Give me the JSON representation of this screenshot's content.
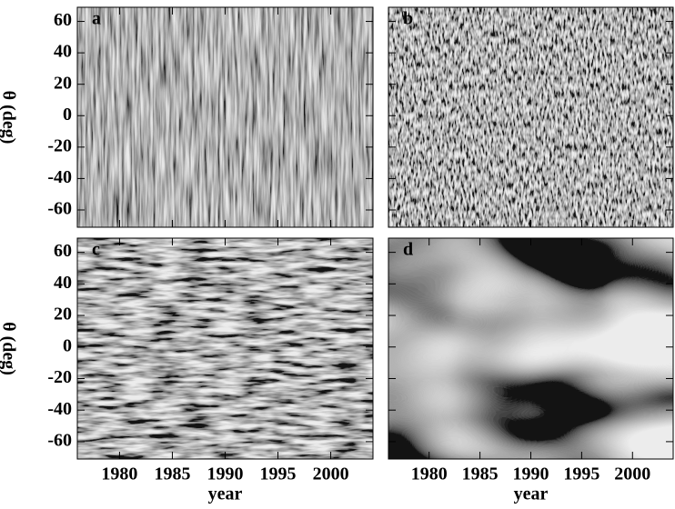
{
  "chart_data": [
    {
      "type": "image",
      "label": "a",
      "xlim": [
        1976,
        2004
      ],
      "ylim": [
        -71,
        69
      ],
      "xticks": [
        1980,
        1985,
        1990,
        1995,
        2000
      ],
      "yticks": [
        60,
        40,
        20,
        0,
        -20,
        -40,
        -60
      ],
      "ylabel": "θ (deg)"
    },
    {
      "type": "image",
      "label": "b",
      "xlim": [
        1976,
        2004
      ],
      "ylim": [
        -71,
        69
      ],
      "xticks": [
        1980,
        1985,
        1990,
        1995,
        2000
      ],
      "yticks": [
        60,
        40,
        20,
        0,
        -20,
        -40,
        -60
      ]
    },
    {
      "type": "image",
      "label": "c",
      "xlim": [
        1976,
        2004
      ],
      "ylim": [
        -71,
        69
      ],
      "xticks": [
        1980,
        1985,
        1990,
        1995,
        2000
      ],
      "yticks": [
        60,
        40,
        20,
        0,
        -20,
        -40,
        -60
      ],
      "ylabel": "θ (deg)",
      "xlabel": "year"
    },
    {
      "type": "image",
      "label": "d",
      "xlim": [
        1976,
        2004
      ],
      "ylim": [
        -71,
        69
      ],
      "xticks": [
        1980,
        1985,
        1990,
        1995,
        2000
      ],
      "yticks": [
        60,
        40,
        20,
        0,
        -20,
        -40,
        -60
      ],
      "xlabel": "year"
    }
  ]
}
